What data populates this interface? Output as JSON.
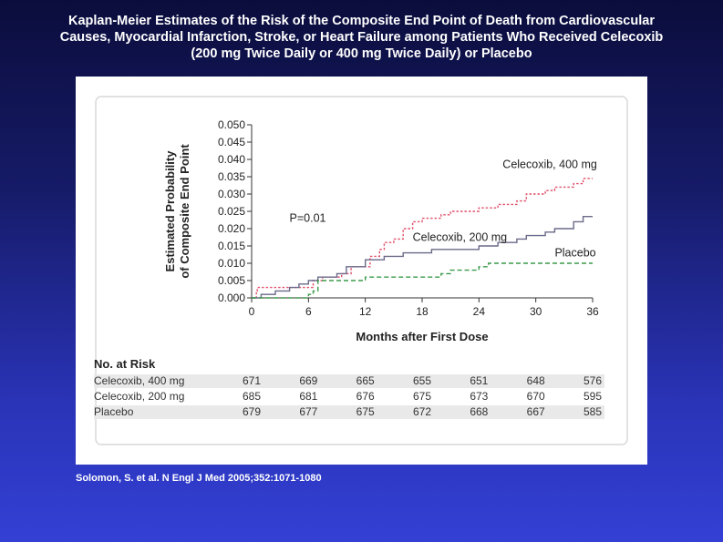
{
  "slide": {
    "title_lines": [
      "Kaplan-Meier Estimates of the Risk of the Composite End Point of Death from Cardiovascular",
      "Causes, Myocardial Infarction, Stroke, or Heart Failure among Patients Who Received Celecoxib",
      "(200 mg Twice Daily or 400 mg Twice Daily) or Placebo"
    ],
    "citation": "Solomon, S. et al. N Engl J Med 2005;352:1071-1080",
    "background_top": "#0b0d3c",
    "background_bottom": "#3340d4"
  },
  "chart_data": {
    "type": "line",
    "xlabel": "Months after First Dose",
    "ylabel_lines": [
      "Estimated Probability",
      "of Composite End Point"
    ],
    "xlim": [
      0,
      36
    ],
    "ylim": [
      0,
      0.05
    ],
    "x_ticks": [
      "0",
      "6",
      "12",
      "18",
      "24",
      "30",
      "36"
    ],
    "y_ticks": [
      "0.000",
      "0.005",
      "0.010",
      "0.015",
      "0.020",
      "0.025",
      "0.030",
      "0.035",
      "0.040",
      "0.045",
      "0.050"
    ],
    "grid": false,
    "annotation": "P=0.01",
    "series": [
      {
        "name": "Celecoxib, 400 mg",
        "color": "#e0506a",
        "dash": "dotted",
        "points": [
          [
            0,
            0.0
          ],
          [
            0.5,
            0.002
          ],
          [
            0.6,
            0.003
          ],
          [
            5,
            0.003
          ],
          [
            6.5,
            0.005
          ],
          [
            7.5,
            0.006
          ],
          [
            9.5,
            0.007
          ],
          [
            10.5,
            0.009
          ],
          [
            12.5,
            0.012
          ],
          [
            13.5,
            0.014
          ],
          [
            14,
            0.016
          ],
          [
            15,
            0.017
          ],
          [
            16,
            0.02
          ],
          [
            17,
            0.022
          ],
          [
            18,
            0.023
          ],
          [
            20,
            0.024
          ],
          [
            21,
            0.025
          ],
          [
            24,
            0.026
          ],
          [
            26,
            0.027
          ],
          [
            28,
            0.028
          ],
          [
            29,
            0.03
          ],
          [
            31,
            0.031
          ],
          [
            32,
            0.032
          ],
          [
            34,
            0.033
          ],
          [
            35,
            0.0345
          ],
          [
            36,
            0.0345
          ]
        ]
      },
      {
        "name": "Celecoxib, 200 mg",
        "color": "#6a6a8a",
        "dash": "solid",
        "points": [
          [
            0,
            0.0
          ],
          [
            1,
            0.001
          ],
          [
            2.5,
            0.002
          ],
          [
            4,
            0.003
          ],
          [
            5,
            0.004
          ],
          [
            6,
            0.005
          ],
          [
            7,
            0.006
          ],
          [
            9,
            0.007
          ],
          [
            10,
            0.009
          ],
          [
            12,
            0.011
          ],
          [
            14,
            0.012
          ],
          [
            16,
            0.013
          ],
          [
            19,
            0.014
          ],
          [
            24,
            0.015
          ],
          [
            26,
            0.016
          ],
          [
            28,
            0.017
          ],
          [
            29,
            0.018
          ],
          [
            31,
            0.019
          ],
          [
            32,
            0.02
          ],
          [
            34,
            0.022
          ],
          [
            35,
            0.0235
          ],
          [
            36,
            0.0235
          ]
        ]
      },
      {
        "name": "Placebo",
        "color": "#3a9a4a",
        "dash": "dashed",
        "points": [
          [
            0,
            0.0
          ],
          [
            5.5,
            0.0
          ],
          [
            6,
            0.001
          ],
          [
            6.5,
            0.002
          ],
          [
            7,
            0.005
          ],
          [
            11,
            0.005
          ],
          [
            12,
            0.006
          ],
          [
            19,
            0.006
          ],
          [
            20,
            0.007
          ],
          [
            21,
            0.008
          ],
          [
            24,
            0.009
          ],
          [
            25,
            0.01
          ],
          [
            36,
            0.01
          ]
        ]
      }
    ],
    "label_positions": {
      "Celecoxib, 400 mg": [
        26.5,
        0.0375
      ],
      "Celecoxib, 200 mg": [
        17,
        0.0165
      ],
      "Placebo": [
        32,
        0.012
      ],
      "annotation": [
        4,
        0.022
      ]
    }
  },
  "risk_table": {
    "header": "No. at Risk",
    "rows": [
      {
        "label": "Celecoxib, 400 mg",
        "values": [
          "671",
          "669",
          "665",
          "655",
          "651",
          "648",
          "576"
        ]
      },
      {
        "label": "Celecoxib, 200 mg",
        "values": [
          "685",
          "681",
          "676",
          "675",
          "673",
          "670",
          "595"
        ]
      },
      {
        "label": "Placebo",
        "values": [
          "679",
          "677",
          "675",
          "672",
          "668",
          "667",
          "585"
        ]
      }
    ]
  }
}
